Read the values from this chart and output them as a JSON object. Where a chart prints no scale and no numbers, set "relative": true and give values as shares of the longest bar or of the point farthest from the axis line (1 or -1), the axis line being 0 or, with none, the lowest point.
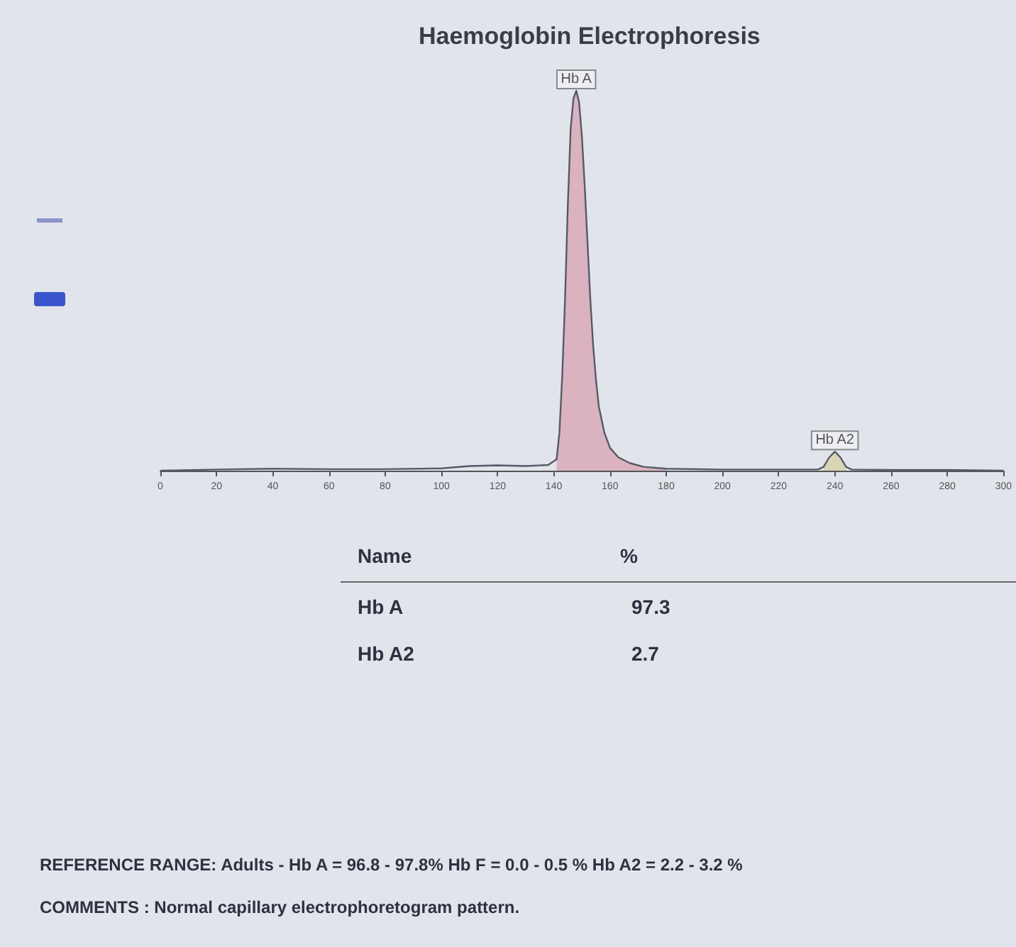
{
  "chart_data": {
    "type": "line",
    "title": "Haemoglobin Electrophoresis",
    "relative": true,
    "marker": "none",
    "xlim": [
      0,
      300
    ],
    "xticks": [
      0,
      20,
      40,
      60,
      80,
      100,
      120,
      140,
      160,
      180,
      200,
      220,
      240,
      260,
      280,
      300
    ],
    "series": [
      {
        "color": "#555a66",
        "x": [
          0,
          20,
          40,
          60,
          80,
          100,
          110,
          120,
          130,
          138,
          141,
          142,
          143,
          144,
          145,
          146,
          147,
          148,
          149,
          150,
          151,
          152,
          153,
          154,
          155,
          156,
          158,
          160,
          163,
          167,
          172,
          180,
          200,
          220,
          234,
          236,
          238,
          240,
          242,
          244,
          246,
          260,
          280,
          300
        ],
        "values": [
          0,
          0.003,
          0.005,
          0.004,
          0.004,
          0.006,
          0.012,
          0.014,
          0.012,
          0.015,
          0.03,
          0.1,
          0.25,
          0.45,
          0.7,
          0.9,
          0.98,
          1,
          0.97,
          0.88,
          0.75,
          0.6,
          0.45,
          0.33,
          0.24,
          0.17,
          0.1,
          0.06,
          0.035,
          0.02,
          0.01,
          0.005,
          0.003,
          0.003,
          0.003,
          0.01,
          0.035,
          0.05,
          0.035,
          0.01,
          0.003,
          0.002,
          0.002,
          0
        ]
      },
      {
        "type": "area",
        "color": "#d9a9b8",
        "x": [
          141,
          142,
          143,
          144,
          145,
          146,
          147,
          148,
          149,
          150,
          151,
          152,
          153,
          154,
          155,
          156,
          158,
          160,
          163,
          167,
          172,
          180
        ],
        "values": [
          0.03,
          0.1,
          0.25,
          0.45,
          0.7,
          0.9,
          0.98,
          1,
          0.97,
          0.88,
          0.75,
          0.6,
          0.45,
          0.33,
          0.24,
          0.17,
          0.1,
          0.06,
          0.035,
          0.02,
          0.01,
          0.005
        ]
      },
      {
        "type": "area",
        "color": "#d8d2ae",
        "x": [
          236,
          238,
          240,
          242,
          244
        ],
        "values": [
          0.01,
          0.035,
          0.05,
          0.035,
          0.01
        ]
      }
    ],
    "annotations": [
      {
        "text": "Hb A",
        "x": 148,
        "y": 1
      },
      {
        "text": "Hb A2",
        "x": 240,
        "y": 0.05
      },
      "Name",
      "%",
      "Hb A",
      "97.3",
      "Hb A2",
      "2.7",
      "REFERENCE RANGE: Adults - Hb A = 96.8 - 97.8% Hb F = 0.0 - 0.5 % Hb A2 = 2.2 - 3.2 %",
      "COMMENTS :  Normal capillary electrophoretogram pattern."
    ]
  }
}
